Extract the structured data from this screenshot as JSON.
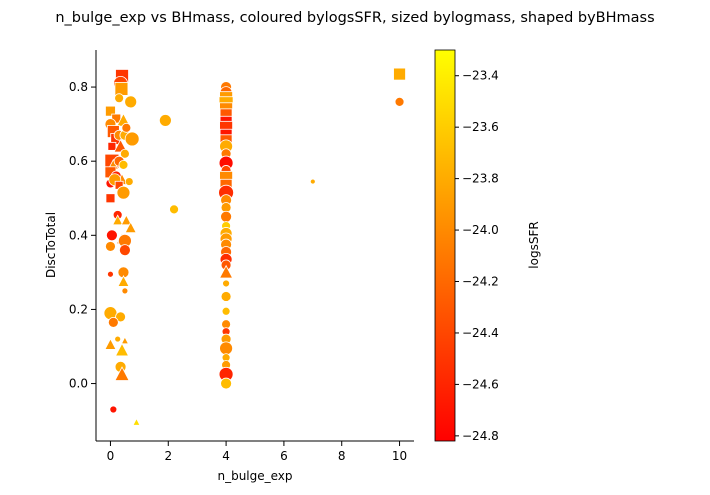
{
  "chart_data": {
    "type": "scatter",
    "title": "n_bulge_exp vs BHmass, coloured bylogsSFR, sized bylogmass, shaped byBHmass",
    "xlabel": "n_bulge_exp",
    "ylabel": "DiscToTotal",
    "xlim": [
      -0.5,
      10.5
    ],
    "ylim": [
      -0.155,
      0.9
    ],
    "xticks": [
      "0",
      "2",
      "4",
      "6",
      "8",
      "10"
    ],
    "xtick_values": [
      0,
      2,
      4,
      6,
      8,
      10
    ],
    "yticks": [
      "0.0",
      "0.2",
      "0.4",
      "0.6",
      "0.8"
    ],
    "ytick_values": [
      0.0,
      0.2,
      0.4,
      0.6,
      0.8
    ],
    "grid": false,
    "colorbar": {
      "label": "logsSFR",
      "range": [
        -24.82,
        -23.3
      ],
      "ticks": [
        "−24.8",
        "−24.6",
        "−24.4",
        "−24.2",
        "−24.0",
        "−23.8",
        "−23.6",
        "−23.4"
      ],
      "tick_values": [
        -24.8,
        -24.6,
        -24.4,
        -24.2,
        -24.0,
        -23.8,
        -23.6,
        -23.4
      ],
      "colormap": [
        "#ff0000",
        "#ff8000",
        "#ffff00"
      ]
    },
    "points": [
      {
        "x": 0.4,
        "y": 0.83,
        "c": -24.5,
        "s": 13,
        "m": "square"
      },
      {
        "x": 0.35,
        "y": 0.81,
        "c": -24.4,
        "s": 14,
        "m": "circle"
      },
      {
        "x": 0.38,
        "y": 0.795,
        "c": -23.9,
        "s": 13,
        "m": "square"
      },
      {
        "x": 0.3,
        "y": 0.77,
        "c": -23.8,
        "s": 9,
        "m": "circle"
      },
      {
        "x": 0.7,
        "y": 0.76,
        "c": -23.8,
        "s": 12,
        "m": "circle"
      },
      {
        "x": 0.0,
        "y": 0.735,
        "c": -23.9,
        "s": 10,
        "m": "square"
      },
      {
        "x": 0.2,
        "y": 0.715,
        "c": -24.1,
        "s": 9,
        "m": "square"
      },
      {
        "x": 0.0,
        "y": 0.7,
        "c": -24.0,
        "s": 11,
        "m": "circle"
      },
      {
        "x": 0.45,
        "y": 0.71,
        "c": -23.8,
        "s": 12,
        "m": "triangle"
      },
      {
        "x": 0.1,
        "y": 0.68,
        "c": -24.3,
        "s": 12,
        "m": "square"
      },
      {
        "x": 0.2,
        "y": 0.66,
        "c": -24.5,
        "s": 11,
        "m": "square"
      },
      {
        "x": 0.3,
        "y": 0.67,
        "c": -24.0,
        "s": 10,
        "m": "circle"
      },
      {
        "x": 0.5,
        "y": 0.67,
        "c": -23.8,
        "s": 10,
        "m": "circle"
      },
      {
        "x": 0.55,
        "y": 0.69,
        "c": -24.1,
        "s": 9,
        "m": "circle"
      },
      {
        "x": 0.75,
        "y": 0.66,
        "c": -23.9,
        "s": 14,
        "m": "circle"
      },
      {
        "x": 0.05,
        "y": 0.64,
        "c": -24.6,
        "s": 8,
        "m": "square"
      },
      {
        "x": 0.35,
        "y": 0.64,
        "c": -24.3,
        "s": 12,
        "m": "triangle"
      },
      {
        "x": 0.5,
        "y": 0.62,
        "c": -23.8,
        "s": 9,
        "m": "circle"
      },
      {
        "x": 0.05,
        "y": 0.6,
        "c": -24.4,
        "s": 14,
        "m": "square"
      },
      {
        "x": 0.1,
        "y": 0.59,
        "c": -24.0,
        "s": 9,
        "m": "triangle"
      },
      {
        "x": 0.3,
        "y": 0.6,
        "c": -24.2,
        "s": 10,
        "m": "circle"
      },
      {
        "x": 0.45,
        "y": 0.59,
        "c": -23.7,
        "s": 9,
        "m": "circle"
      },
      {
        "x": 0.0,
        "y": 0.57,
        "c": -24.3,
        "s": 11,
        "m": "square"
      },
      {
        "x": 0.2,
        "y": 0.56,
        "c": -24.6,
        "s": 10,
        "m": "circle"
      },
      {
        "x": 0.4,
        "y": 0.55,
        "c": -24.0,
        "s": 10,
        "m": "triangle"
      },
      {
        "x": 0.65,
        "y": 0.545,
        "c": -23.8,
        "s": 8,
        "m": "circle"
      },
      {
        "x": 0.0,
        "y": 0.54,
        "c": -24.7,
        "s": 9,
        "m": "circle"
      },
      {
        "x": 0.15,
        "y": 0.55,
        "c": -23.9,
        "s": 12,
        "m": "circle"
      },
      {
        "x": 0.3,
        "y": 0.535,
        "c": -24.4,
        "s": 8,
        "m": "square"
      },
      {
        "x": 0.45,
        "y": 0.515,
        "c": -23.9,
        "s": 13,
        "m": "circle"
      },
      {
        "x": 0.0,
        "y": 0.5,
        "c": -24.5,
        "s": 9,
        "m": "square"
      },
      {
        "x": 1.9,
        "y": 0.71,
        "c": -23.8,
        "s": 12,
        "m": "circle"
      },
      {
        "x": 2.2,
        "y": 0.47,
        "c": -23.7,
        "s": 9,
        "m": "circle"
      },
      {
        "x": 0.25,
        "y": 0.455,
        "c": -24.6,
        "s": 9,
        "m": "circle"
      },
      {
        "x": 0.25,
        "y": 0.44,
        "c": -23.8,
        "s": 9,
        "m": "triangle"
      },
      {
        "x": 0.55,
        "y": 0.44,
        "c": -23.9,
        "s": 9,
        "m": "triangle"
      },
      {
        "x": 0.7,
        "y": 0.42,
        "c": -23.9,
        "s": 10,
        "m": "triangle"
      },
      {
        "x": 0.05,
        "y": 0.4,
        "c": -24.7,
        "s": 11,
        "m": "circle"
      },
      {
        "x": 0.4,
        "y": 0.39,
        "c": -24.1,
        "s": 10,
        "m": "triangle"
      },
      {
        "x": 0.5,
        "y": 0.385,
        "c": -24.1,
        "s": 13,
        "m": "circle"
      },
      {
        "x": 0.0,
        "y": 0.37,
        "c": -24.0,
        "s": 10,
        "m": "circle"
      },
      {
        "x": 0.5,
        "y": 0.36,
        "c": -24.4,
        "s": 11,
        "m": "circle"
      },
      {
        "x": 0.45,
        "y": 0.3,
        "c": -24.0,
        "s": 11,
        "m": "circle"
      },
      {
        "x": 0.0,
        "y": 0.295,
        "c": -24.5,
        "s": 6,
        "m": "circle"
      },
      {
        "x": 0.45,
        "y": 0.275,
        "c": -23.8,
        "s": 10,
        "m": "triangle"
      },
      {
        "x": 0.5,
        "y": 0.25,
        "c": -24.0,
        "s": 6,
        "m": "circle"
      },
      {
        "x": 0.0,
        "y": 0.19,
        "c": -23.8,
        "s": 13,
        "m": "circle"
      },
      {
        "x": 0.35,
        "y": 0.18,
        "c": -23.8,
        "s": 10,
        "m": "circle"
      },
      {
        "x": 0.1,
        "y": 0.165,
        "c": -24.1,
        "s": 10,
        "m": "circle"
      },
      {
        "x": 0.25,
        "y": 0.12,
        "c": -23.8,
        "s": 6,
        "m": "circle"
      },
      {
        "x": 0.5,
        "y": 0.115,
        "c": -23.9,
        "s": 6,
        "m": "triangle"
      },
      {
        "x": 0.0,
        "y": 0.105,
        "c": -23.9,
        "s": 10,
        "m": "triangle"
      },
      {
        "x": 0.4,
        "y": 0.09,
        "c": -23.7,
        "s": 12,
        "m": "triangle"
      },
      {
        "x": 0.35,
        "y": 0.045,
        "c": -23.8,
        "s": 11,
        "m": "circle"
      },
      {
        "x": 0.4,
        "y": 0.025,
        "c": -24.1,
        "s": 13,
        "m": "triangle"
      },
      {
        "x": 0.1,
        "y": -0.07,
        "c": -24.7,
        "s": 7,
        "m": "circle"
      },
      {
        "x": 0.9,
        "y": -0.105,
        "c": -23.5,
        "s": 6,
        "m": "triangle"
      },
      {
        "x": 4.0,
        "y": 0.8,
        "c": -24.1,
        "s": 11,
        "m": "circle"
      },
      {
        "x": 4.0,
        "y": 0.785,
        "c": -24.2,
        "s": 12,
        "m": "circle"
      },
      {
        "x": 4.0,
        "y": 0.77,
        "c": -23.9,
        "s": 13,
        "m": "square"
      },
      {
        "x": 4.0,
        "y": 0.755,
        "c": -23.8,
        "s": 14,
        "m": "square"
      },
      {
        "x": 4.0,
        "y": 0.74,
        "c": -24.0,
        "s": 13,
        "m": "square"
      },
      {
        "x": 4.0,
        "y": 0.725,
        "c": -24.3,
        "s": 12,
        "m": "square"
      },
      {
        "x": 4.0,
        "y": 0.705,
        "c": -24.7,
        "s": 12,
        "m": "square"
      },
      {
        "x": 4.0,
        "y": 0.69,
        "c": -24.5,
        "s": 13,
        "m": "square"
      },
      {
        "x": 4.0,
        "y": 0.67,
        "c": -24.7,
        "s": 12,
        "m": "square"
      },
      {
        "x": 4.0,
        "y": 0.655,
        "c": -24.3,
        "s": 12,
        "m": "square"
      },
      {
        "x": 4.0,
        "y": 0.64,
        "c": -23.8,
        "s": 13,
        "m": "circle"
      },
      {
        "x": 4.0,
        "y": 0.62,
        "c": -24.1,
        "s": 10,
        "m": "circle"
      },
      {
        "x": 4.0,
        "y": 0.595,
        "c": -24.75,
        "s": 14,
        "m": "circle"
      },
      {
        "x": 4.0,
        "y": 0.575,
        "c": -24.4,
        "s": 10,
        "m": "circle"
      },
      {
        "x": 4.0,
        "y": 0.555,
        "c": -24.0,
        "s": 13,
        "m": "square"
      },
      {
        "x": 4.0,
        "y": 0.535,
        "c": -24.2,
        "s": 12,
        "m": "square"
      },
      {
        "x": 4.0,
        "y": 0.515,
        "c": -24.55,
        "s": 15,
        "m": "circle"
      },
      {
        "x": 4.0,
        "y": 0.495,
        "c": -24.0,
        "s": 11,
        "m": "circle"
      },
      {
        "x": 4.0,
        "y": 0.475,
        "c": -23.9,
        "s": 10,
        "m": "circle"
      },
      {
        "x": 4.0,
        "y": 0.45,
        "c": -24.1,
        "s": 11,
        "m": "circle"
      },
      {
        "x": 4.0,
        "y": 0.425,
        "c": -23.6,
        "s": 9,
        "m": "circle"
      },
      {
        "x": 4.0,
        "y": 0.405,
        "c": -23.8,
        "s": 12,
        "m": "circle"
      },
      {
        "x": 4.0,
        "y": 0.39,
        "c": -23.9,
        "s": 12,
        "m": "circle"
      },
      {
        "x": 4.0,
        "y": 0.375,
        "c": -24.0,
        "s": 11,
        "m": "circle"
      },
      {
        "x": 4.0,
        "y": 0.355,
        "c": -24.2,
        "s": 11,
        "m": "circle"
      },
      {
        "x": 4.0,
        "y": 0.335,
        "c": -24.55,
        "s": 12,
        "m": "circle"
      },
      {
        "x": 4.0,
        "y": 0.32,
        "c": -24.3,
        "s": 10,
        "m": "circle"
      },
      {
        "x": 4.0,
        "y": 0.3,
        "c": -24.1,
        "s": 12,
        "m": "triangle"
      },
      {
        "x": 4.0,
        "y": 0.27,
        "c": -23.8,
        "s": 7,
        "m": "circle"
      },
      {
        "x": 4.0,
        "y": 0.235,
        "c": -23.8,
        "s": 10,
        "m": "circle"
      },
      {
        "x": 4.0,
        "y": 0.195,
        "c": -23.7,
        "s": 8,
        "m": "circle"
      },
      {
        "x": 4.0,
        "y": 0.16,
        "c": -24.0,
        "s": 9,
        "m": "circle"
      },
      {
        "x": 4.0,
        "y": 0.14,
        "c": -24.5,
        "s": 8,
        "m": "circle"
      },
      {
        "x": 4.0,
        "y": 0.12,
        "c": -23.9,
        "s": 10,
        "m": "circle"
      },
      {
        "x": 4.0,
        "y": 0.095,
        "c": -24.0,
        "s": 13,
        "m": "circle"
      },
      {
        "x": 4.0,
        "y": 0.07,
        "c": -23.8,
        "s": 8,
        "m": "circle"
      },
      {
        "x": 4.0,
        "y": 0.05,
        "c": -23.9,
        "s": 9,
        "m": "circle"
      },
      {
        "x": 4.0,
        "y": 0.025,
        "c": -24.6,
        "s": 14,
        "m": "circle"
      },
      {
        "x": 4.0,
        "y": 0.0,
        "c": -23.7,
        "s": 11,
        "m": "circle"
      },
      {
        "x": 7.0,
        "y": 0.545,
        "c": -23.8,
        "s": 5,
        "m": "circle"
      },
      {
        "x": 10.0,
        "y": 0.835,
        "c": -23.8,
        "s": 12,
        "m": "square"
      },
      {
        "x": 10.0,
        "y": 0.76,
        "c": -24.1,
        "s": 9,
        "m": "circle"
      }
    ]
  }
}
